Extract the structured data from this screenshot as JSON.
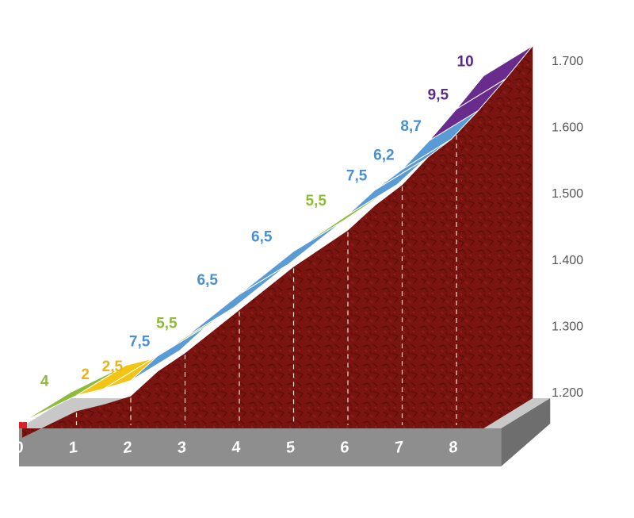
{
  "chart_data": {
    "type": "area",
    "title": "",
    "xlabel": "",
    "ylabel": "",
    "x_ticks": [
      "0",
      "1",
      "2",
      "3",
      "4",
      "5",
      "6",
      "7",
      "8"
    ],
    "y_ticks": [
      "1.200",
      "1.300",
      "1.400",
      "1.500",
      "1.600",
      "1.700"
    ],
    "ylim": [
      1200,
      1750
    ],
    "xlim": [
      0,
      8.5
    ],
    "segments": [
      {
        "from_km": 0.0,
        "to_km": 1.0,
        "gradient": 4,
        "label": "4",
        "color": "#8dbb3a"
      },
      {
        "from_km": 1.0,
        "to_km": 1.5,
        "gradient": 2,
        "label": "2",
        "color": "#f2c514"
      },
      {
        "from_km": 1.5,
        "to_km": 2.0,
        "gradient": 2.5,
        "label": "2,5",
        "color": "#f2c514"
      },
      {
        "from_km": 2.0,
        "to_km": 2.5,
        "gradient": 7.5,
        "label": "7,5",
        "color": "#5b9bd5"
      },
      {
        "from_km": 2.5,
        "to_km": 3.0,
        "gradient": 5.5,
        "label": "5,5",
        "color": "#8dbb3a"
      },
      {
        "from_km": 3.0,
        "to_km": 4.0,
        "gradient": 6.5,
        "label": "6,5",
        "color": "#5b9bd5"
      },
      {
        "from_km": 4.0,
        "to_km": 5.0,
        "gradient": 6.5,
        "label": "6,5",
        "color": "#5b9bd5"
      },
      {
        "from_km": 5.0,
        "to_km": 6.0,
        "gradient": 5.5,
        "label": "5,5",
        "color": "#8dbb3a"
      },
      {
        "from_km": 6.0,
        "to_km": 6.5,
        "gradient": 7.5,
        "label": "7,5",
        "color": "#5b9bd5"
      },
      {
        "from_km": 6.5,
        "to_km": 7.0,
        "gradient": 6.2,
        "label": "6,2",
        "color": "#5b9bd5"
      },
      {
        "from_km": 7.0,
        "to_km": 7.5,
        "gradient": 8.7,
        "label": "8,7",
        "color": "#5b9bd5"
      },
      {
        "from_km": 7.5,
        "to_km": 8.0,
        "gradient": 9.5,
        "label": "9,5",
        "color": "#6a2c8c"
      },
      {
        "from_km": 8.0,
        "to_km": 8.5,
        "gradient": 10,
        "label": "10",
        "color": "#6a2c8c"
      }
    ],
    "colors": {
      "terrain": "#7a1410",
      "terrain_dark": "#5a0c08",
      "base": "#8e8e8e",
      "base_top": "#c8c8c8",
      "start_block": "#d9202a",
      "label_green": "#8dbb3a",
      "label_yellow": "#e8b416",
      "label_blue": "#4a8fcf",
      "label_purple": "#5b2a82"
    }
  }
}
